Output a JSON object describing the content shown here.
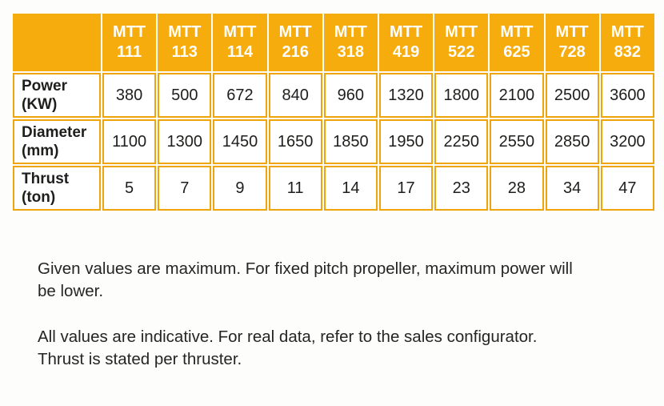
{
  "colors": {
    "accent": "#F7AC0D",
    "cell_border": "#F0A40C",
    "ink": "#1E1E1C",
    "background": "#FDFDFC",
    "header_text": "#FFFFFF"
  },
  "table": {
    "corner_label": "",
    "columns": [
      "MTT 111",
      "MTT 113",
      "MTT 114",
      "MTT 216",
      "MTT 318",
      "MTT 419",
      "MTT 522",
      "MTT 625",
      "MTT 728",
      "MTT 832"
    ],
    "rows": [
      {
        "label": "Power",
        "unit": "(KW)",
        "values": [
          "380",
          "500",
          "672",
          "840",
          "960",
          "1320",
          "1800",
          "2100",
          "2500",
          "3600"
        ]
      },
      {
        "label": "Diameter",
        "unit": "(mm)",
        "values": [
          "1100",
          "1300",
          "1450",
          "1650",
          "1850",
          "1950",
          "2250",
          "2550",
          "2850",
          "3200"
        ]
      },
      {
        "label": "Thrust",
        "unit": "(ton)",
        "values": [
          "5",
          "7",
          "9",
          "11",
          "14",
          "17",
          "23",
          "28",
          "34",
          "47"
        ]
      }
    ]
  },
  "notes": [
    {
      "lines": [
        "Given values are maximum. For fixed pitch propeller, maximum power will",
        "be lower."
      ]
    },
    {
      "lines": [
        "All values are indicative. For real data, refer to the sales configurator.",
        "Thrust is stated per thruster."
      ]
    }
  ]
}
